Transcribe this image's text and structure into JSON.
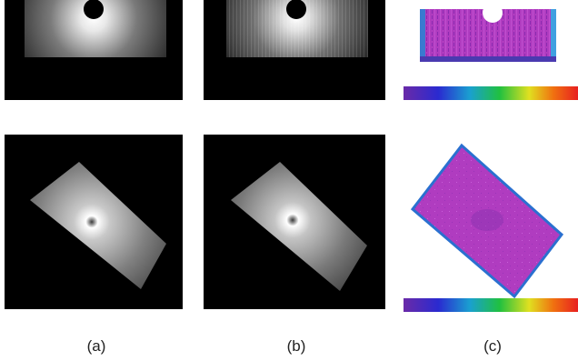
{
  "figure": {
    "labels": [
      "(a)",
      "(b)",
      "(c)"
    ]
  },
  "colors": {
    "background": "#ffffff",
    "panel_background": "#000000",
    "difference_map_fill": "#b03cc0",
    "colorbar_stops": [
      "#6a2aa8",
      "#2a2ad0",
      "#1aa0d0",
      "#20c040",
      "#e0e020",
      "#f07010",
      "#e82020"
    ]
  },
  "icons": {
    "top_row": "beam-dose-distribution-slab",
    "bottom_row": "beam-dose-distribution-rotated-block",
    "colorbar": "rainbow-colorbar"
  }
}
